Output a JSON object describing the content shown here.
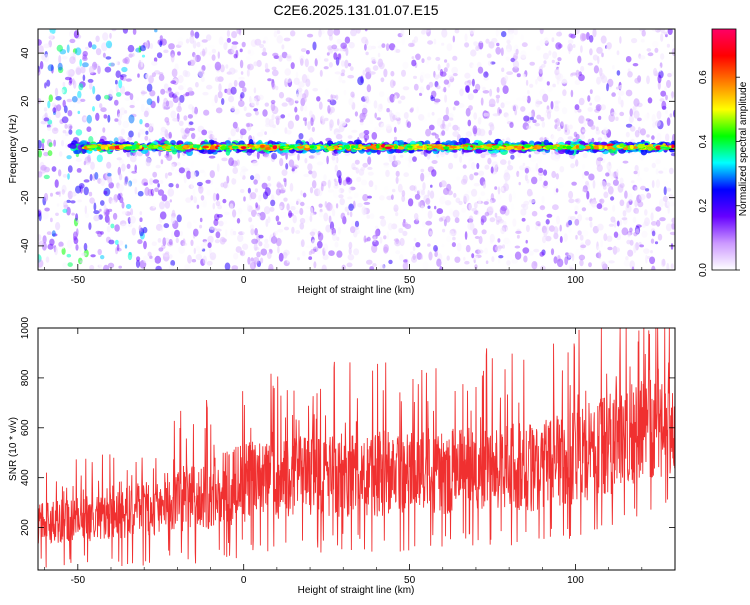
{
  "title": "C2E6.2025.131.01.07.E15",
  "chart_data": [
    {
      "type": "heatmap",
      "title": "C2E6.2025.131.01.07.E15",
      "xlabel": "Height of straight line (km)",
      "ylabel": "Frequency (Hz)",
      "xlim": [
        -62,
        130
      ],
      "ylim": [
        -50,
        50
      ],
      "x_ticks": [
        -50,
        0,
        50,
        100
      ],
      "y_ticks": [
        -40,
        -20,
        0,
        20,
        40
      ],
      "colorbar": {
        "label": "Normalized spectral amplitude",
        "range": [
          0,
          0.75
        ],
        "ticks": [
          0,
          0.2,
          0.4,
          0.6
        ],
        "colors": [
          "#ffffff",
          "#cc99ff",
          "#6600ff",
          "#0000ff",
          "#00ffff",
          "#00ff00",
          "#ffff00",
          "#ff7f00",
          "#ff0000",
          "#ff0066"
        ]
      },
      "signal_band": {
        "frequency_hz": 1,
        "x_start": -52,
        "x_end": 130,
        "peak_amplitude": 0.7
      },
      "grid": false
    },
    {
      "type": "line",
      "xlabel": "Height of straight line (km)",
      "ylabel": "SNR (10 * v/v)",
      "xlim": [
        -62,
        130
      ],
      "ylim": [
        30,
        1000
      ],
      "x_ticks": [
        -50,
        0,
        50,
        100
      ],
      "y_ticks": [
        200,
        400,
        600,
        800,
        1000
      ],
      "series_color": "#f03030",
      "envelope": {
        "x": [
          -62,
          -50,
          -40,
          -30,
          -20,
          -10,
          0,
          10,
          20,
          30,
          40,
          50,
          60,
          70,
          80,
          90,
          100,
          110,
          120,
          130
        ],
        "low": [
          100,
          100,
          110,
          120,
          130,
          140,
          160,
          170,
          180,
          175,
          180,
          185,
          185,
          190,
          190,
          200,
          220,
          250,
          290,
          330
        ],
        "high": [
          320,
          330,
          360,
          400,
          460,
          500,
          560,
          580,
          600,
          600,
          610,
          620,
          620,
          630,
          640,
          650,
          700,
          760,
          850,
          900
        ]
      },
      "grid": false
    }
  ]
}
